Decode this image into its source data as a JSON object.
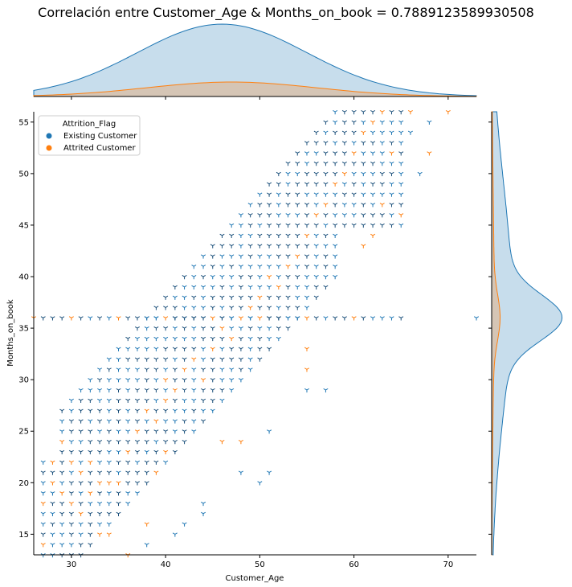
{
  "chart_data": {
    "type": "scatter",
    "title": "Correlación entre Customer_Age & Months_on_book = 0.7889123589930508",
    "xlabel": "Customer_Age",
    "ylabel": "Months_on_book",
    "xlim": [
      26,
      73
    ],
    "ylim": [
      13,
      56
    ],
    "xticks": [
      30,
      40,
      50,
      60,
      70
    ],
    "yticks": [
      15,
      20,
      25,
      30,
      35,
      40,
      45,
      50,
      55
    ],
    "legend": {
      "title": "Attrition_Flag",
      "placement": "top-left",
      "entries": [
        "Existing Customer",
        "Attrited Customer"
      ]
    },
    "marker": "tri-down",
    "grid": false,
    "series": [
      {
        "name": "Existing Customer",
        "color": "#1f77b4",
        "note_structure": "scatter points on integer grid: a band following months ≈ age − 10 (± 8), a horizontal row at 36 months, and sparse outliers",
        "band_points_x_range": [
          27,
          65
        ],
        "row_y": 36,
        "row_x_range": [
          26,
          65
        ],
        "outliers": [
          [
            73,
            36
          ],
          [
            67,
            50
          ],
          [
            66,
            54
          ],
          [
            68,
            55
          ],
          [
            55,
            29
          ],
          [
            57,
            29
          ],
          [
            51,
            25
          ],
          [
            50,
            20
          ],
          [
            51,
            21
          ],
          [
            48,
            21
          ],
          [
            44,
            18
          ],
          [
            42,
            16
          ],
          [
            44,
            17
          ],
          [
            41,
            15
          ],
          [
            38,
            14
          ]
        ]
      },
      {
        "name": "Attrited Customer",
        "color": "#ff7f0e",
        "attrited_points": [
          [
            68,
            52
          ],
          [
            65,
            46
          ],
          [
            63,
            47
          ],
          [
            62,
            44
          ],
          [
            61,
            43
          ],
          [
            55,
            31
          ],
          [
            55,
            33
          ],
          [
            46,
            24
          ],
          [
            48,
            24
          ],
          [
            38,
            16
          ],
          [
            36,
            13
          ],
          [
            30,
            36
          ],
          [
            34,
            15
          ],
          [
            33,
            15
          ],
          [
            31,
            17
          ],
          [
            29,
            19
          ],
          [
            30,
            18
          ],
          [
            32,
            19
          ],
          [
            35,
            20
          ],
          [
            27,
            18
          ],
          [
            27,
            14
          ],
          [
            28,
            20
          ],
          [
            28,
            22
          ],
          [
            29,
            24
          ],
          [
            30,
            22
          ],
          [
            31,
            21
          ],
          [
            32,
            22
          ],
          [
            33,
            20
          ],
          [
            34,
            20
          ],
          [
            39,
            21
          ],
          [
            40,
            23
          ],
          [
            36,
            23
          ],
          [
            37,
            25
          ],
          [
            38,
            27
          ],
          [
            39,
            26
          ],
          [
            40,
            28
          ],
          [
            40,
            30
          ],
          [
            41,
            29
          ],
          [
            42,
            31
          ],
          [
            43,
            32
          ],
          [
            44,
            30
          ],
          [
            45,
            33
          ],
          [
            46,
            35
          ],
          [
            47,
            34
          ],
          [
            48,
            36
          ],
          [
            49,
            37
          ],
          [
            50,
            38
          ],
          [
            51,
            40
          ],
          [
            52,
            39
          ],
          [
            53,
            41
          ],
          [
            54,
            42
          ],
          [
            55,
            44
          ],
          [
            56,
            46
          ],
          [
            57,
            47
          ],
          [
            58,
            49
          ],
          [
            59,
            50
          ],
          [
            60,
            52
          ],
          [
            61,
            54
          ],
          [
            62,
            55
          ],
          [
            63,
            56
          ],
          [
            64,
            52
          ],
          [
            66,
            56
          ],
          [
            70,
            56
          ],
          [
            40,
            36
          ],
          [
            45,
            36
          ],
          [
            50,
            36
          ],
          [
            55,
            36
          ],
          [
            60,
            36
          ],
          [
            35,
            36
          ],
          [
            26,
            36
          ]
        ]
      }
    ],
    "marginal_x": {
      "type": "kde",
      "series": [
        {
          "name": "Existing Customer",
          "color": "#1f77b4",
          "peak_x": 46,
          "relative_height": 1.0
        },
        {
          "name": "Attrited Customer",
          "color": "#ff7f0e",
          "peak_x": 47,
          "relative_height": 0.2
        }
      ]
    },
    "marginal_y": {
      "type": "kde",
      "series": [
        {
          "name": "Existing Customer",
          "color": "#1f77b4",
          "peak_y": 36,
          "relative_width": 1.0
        },
        {
          "name": "Attrited Customer",
          "color": "#ff7f0e",
          "peak_y": 36,
          "relative_width": 0.12
        }
      ]
    }
  }
}
